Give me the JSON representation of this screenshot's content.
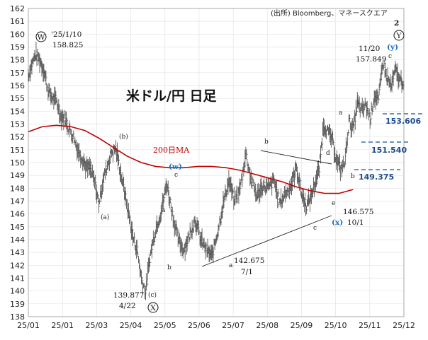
{
  "source_label": "(出所) Bloomberg、マネースクエア",
  "chart_data": {
    "type": "line",
    "title": "米ドル/円 日足",
    "xlabel": "",
    "ylabel": "",
    "ylim": [
      138,
      162
    ],
    "y_ticks": [
      138,
      139,
      140,
      141,
      142,
      143,
      144,
      145,
      146,
      147,
      148,
      149,
      150,
      151,
      152,
      153,
      154,
      155,
      156,
      157,
      158,
      159,
      160,
      161,
      162
    ],
    "x_tick_labels": [
      "25/01",
      "25/01",
      "25/03",
      "25/04",
      "25/05",
      "25/06",
      "25/07",
      "25/08",
      "25/09",
      "25/10",
      "25/11",
      "25/12"
    ],
    "grid": true,
    "legend": "none",
    "series": [
      {
        "name": "200日MA",
        "color": "#c00000",
        "x": [
          0,
          0.5,
          1,
          1.5,
          2,
          2.5,
          3,
          3.5,
          4,
          4.5,
          5,
          5.5,
          6,
          6.5,
          7,
          7.5,
          8,
          8.5,
          9,
          9.5,
          10,
          10.5,
          11,
          11.5
        ],
        "y": [
          152.4,
          152.8,
          152.9,
          152.8,
          152.5,
          151.9,
          151.2,
          150.5,
          150.0,
          149.7,
          149.6,
          149.6,
          149.7,
          149.7,
          149.6,
          149.4,
          149.1,
          148.8,
          148.5,
          148.1,
          147.8,
          147.6,
          147.6,
          147.9
        ]
      },
      {
        "name": "",
        "color": "#555555",
        "x": [
          0,
          0.1,
          0.25,
          0.4,
          0.55,
          0.7,
          0.85,
          1.0,
          1.15,
          1.3,
          1.45,
          1.6,
          1.75,
          1.9,
          2.05,
          2.2,
          2.35,
          2.5,
          2.65,
          2.8,
          2.95,
          3.1,
          3.25,
          3.4,
          3.55,
          3.7,
          3.85,
          4.0,
          4.15,
          4.3,
          4.5,
          4.7,
          4.9,
          5.1,
          5.3,
          5.5,
          5.7,
          5.9,
          6.1,
          6.3,
          6.5,
          6.7,
          6.9,
          7.1,
          7.3,
          7.5,
          7.7,
          7.9,
          8.1,
          8.3,
          8.5,
          8.7,
          8.9,
          9.1,
          9.3,
          9.5,
          9.7,
          9.85,
          10.0,
          10.15,
          10.3,
          10.45,
          10.6,
          10.75,
          10.9,
          11.05,
          11.2,
          11.35,
          11.5,
          11.65
        ],
        "y": [
          156.8,
          157.5,
          158.4,
          158.0,
          157.2,
          155.6,
          155.0,
          154.8,
          153.6,
          153.4,
          152.6,
          152.0,
          151.0,
          150.4,
          149.6,
          149.5,
          148.4,
          146.8,
          148.6,
          149.8,
          150.8,
          151.1,
          149.4,
          147.8,
          146.0,
          144.2,
          143.2,
          141.0,
          139.9,
          142.6,
          144.8,
          146.2,
          148.4,
          146.0,
          144.0,
          143.2,
          144.3,
          145.6,
          144.0,
          143.2,
          142.7,
          144.6,
          146.8,
          148.6,
          147.0,
          148.0,
          150.7,
          148.6,
          147.4,
          148.2,
          148.0,
          148.6,
          146.8,
          147.6,
          148.2,
          149.6,
          147.4,
          146.6,
          147.3,
          148.4,
          149.5,
          153.0,
          152.4,
          151.8,
          150.3,
          149.5,
          149.9,
          153.2,
          152.6,
          154.6
        ]
      },
      {
        "name": "",
        "color": "#555555",
        "x": [
          11.65,
          11.8,
          11.95,
          12.1,
          12.25,
          12.4,
          12.55,
          12.7,
          12.85,
          13.0,
          13.15,
          13.3
        ],
        "y": [
          154.6,
          154.0,
          154.5,
          153.4,
          155.2,
          154.8,
          157.849,
          156.6,
          155.9,
          157.2,
          156.4,
          156.3
        ]
      }
    ],
    "annotations": [
      {
        "text": "'25/1/10"
      },
      {
        "text": "158.825"
      },
      {
        "text": "W"
      },
      {
        "text": "(b)"
      },
      {
        "text": "(a)"
      },
      {
        "text": "139.877"
      },
      {
        "text": "4/22"
      },
      {
        "text": "X"
      },
      {
        "text": "(c)"
      },
      {
        "text": "a"
      },
      {
        "text": "b"
      },
      {
        "text": "c"
      },
      {
        "text": "(w)"
      },
      {
        "text": "200日MA"
      },
      {
        "text": "142.675"
      },
      {
        "text": "7/1"
      },
      {
        "text": "a"
      },
      {
        "text": "b"
      },
      {
        "text": "c"
      },
      {
        "text": "d"
      },
      {
        "text": "e"
      },
      {
        "text": "146.575"
      },
      {
        "text": "10/1"
      },
      {
        "text": "(x)"
      },
      {
        "text": "a"
      },
      {
        "text": "b"
      },
      {
        "text": "c"
      },
      {
        "text": "11/20"
      },
      {
        "text": "157.849"
      },
      {
        "text": "(y)"
      },
      {
        "text": "Y"
      },
      {
        "text": "2"
      },
      {
        "text": "153.606"
      },
      {
        "text": "151.540"
      },
      {
        "text": "149.375"
      }
    ]
  }
}
